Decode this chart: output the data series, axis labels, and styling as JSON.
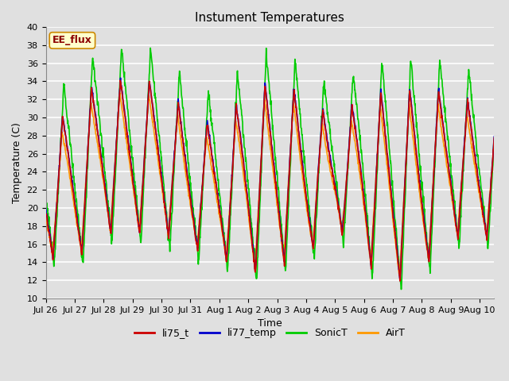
{
  "title": "Instument Temperatures",
  "xlabel": "Time",
  "ylabel": "Temperature (C)",
  "ylim": [
    10,
    40
  ],
  "annotation_text": "EE_flux",
  "annotation_box_facecolor": "#ffffcc",
  "annotation_box_edgecolor": "#cc8800",
  "plot_bg_color": "#e0e0e0",
  "grid_color": "#ffffff",
  "xtick_labels": [
    "Jul 26",
    "Jul 27",
    "Jul 28",
    "Jul 29",
    "Jul 30",
    "Jul 31",
    "Aug 1",
    "Aug 2",
    "Aug 3",
    "Aug 4",
    "Aug 5",
    "Aug 6",
    "Aug 7",
    "Aug 8",
    "Aug 9",
    "Aug 10"
  ],
  "series_colors": {
    "li75_t": "#cc0000",
    "li77_temp": "#0000cc",
    "SonicT": "#00cc00",
    "AirT": "#ff9900"
  },
  "series_linewidth": 1.2,
  "title_fontsize": 11,
  "axis_fontsize": 9,
  "tick_fontsize": 8,
  "end_day": 15.5
}
